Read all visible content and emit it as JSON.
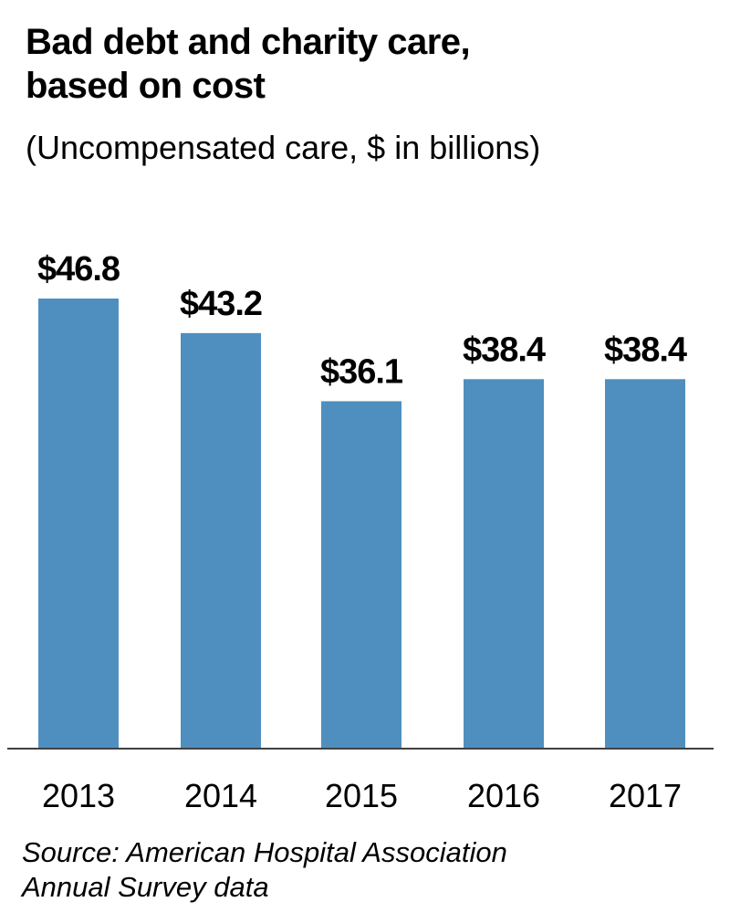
{
  "chart_data": {
    "type": "bar",
    "title": "Bad debt and charity care, based on cost",
    "title_lines": [
      "Bad debt and charity care,",
      "based on cost"
    ],
    "subtitle": "(Uncompensated care, $ in billions)",
    "categories": [
      "2013",
      "2014",
      "2015",
      "2016",
      "2017"
    ],
    "values": [
      46.8,
      43.2,
      36.1,
      38.4,
      38.4
    ],
    "data_labels": [
      "$46.8",
      "$43.2",
      "$36.1",
      "$38.4",
      "$38.4"
    ],
    "ylim": [
      0,
      46.8
    ],
    "grid": false,
    "bar_color": "#4f8fbf",
    "source_lines": [
      "Source: American Hospital Association",
      "Annual Survey data"
    ]
  }
}
